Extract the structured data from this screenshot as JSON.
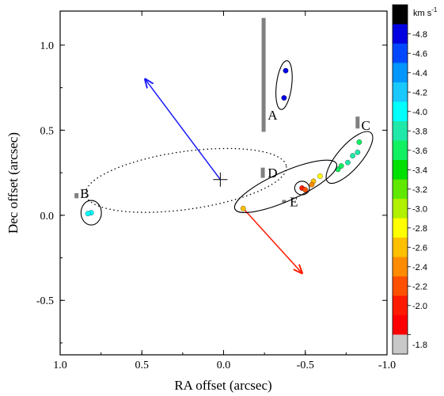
{
  "chart_data": {
    "type": "scatter",
    "xlabel": "RA offset (arcsec)",
    "ylabel": "Dec offset (arcsec)",
    "xlim": [
      1.0,
      -1.0
    ],
    "ylim": [
      -0.82,
      1.2
    ],
    "x_ticks": [
      "1.0",
      "0.5",
      "0.0",
      "-0.5",
      "-1.0"
    ],
    "x_tick_values": [
      1.0,
      0.5,
      0.0,
      -0.5,
      -1.0
    ],
    "y_ticks": [
      "-0.5",
      "0.0",
      "0.5",
      "1.0"
    ],
    "y_tick_values": [
      -0.5,
      0.0,
      0.5,
      1.0
    ],
    "grid": false,
    "colorbar": {
      "unit": "km s",
      "unit_exponent": "-1",
      "labels": [
        "-4.8",
        "-4.6",
        "-4.4",
        "-4.2",
        "-4.0",
        "-3.8",
        "-3.6",
        "-3.4",
        "-3.2",
        "-3.0",
        "-2.8",
        "-2.6",
        "-2.4",
        "-2.2",
        "-2.0",
        "-1.8"
      ],
      "colors": [
        "#000000",
        "#0000e0",
        "#0048ff",
        "#0096ff",
        "#18c8ff",
        "#00ffff",
        "#20e8a8",
        "#10f060",
        "#00e000",
        "#60e800",
        "#b0f000",
        "#ffff00",
        "#ffc000",
        "#ff8c00",
        "#ff5000",
        "#ff1a00",
        "#ff0000",
        "#c8c8c8"
      ]
    },
    "center_marker": {
      "x": 0.02,
      "y": 0.21
    },
    "orbit_ellipse": {
      "cx": 0.23,
      "cy": 0.205,
      "rx": 0.62,
      "ry": 0.17,
      "angle_deg": 8
    },
    "arrows": [
      {
        "name": "blue",
        "color": "#1a1aff",
        "x1": 0.02,
        "y1": 0.21,
        "x2": 0.48,
        "y2": 0.8
      },
      {
        "name": "red",
        "color": "#ff1a00",
        "x1": -0.13,
        "y1": 0.03,
        "x2": -0.48,
        "y2": -0.34
      }
    ],
    "sources": [
      {
        "label": "A",
        "label_x": -0.3,
        "label_y": 0.58,
        "bar": {
          "x": -0.245,
          "y1": 0.49,
          "y2": 1.16
        },
        "ellipse": {
          "cx": -0.37,
          "cy": 0.765,
          "rx": 0.15,
          "ry": 0.045,
          "angle_deg": 83
        },
        "points": [
          {
            "x": -0.38,
            "y": 0.85,
            "velocity": -4.8
          },
          {
            "x": -0.37,
            "y": 0.69,
            "velocity": -4.8
          }
        ]
      },
      {
        "label": "B",
        "label_x": 0.85,
        "label_y": 0.12,
        "bar": {
          "x": 0.9,
          "y1": 0.1,
          "y2": 0.13
        },
        "ellipse": {
          "cx": 0.81,
          "cy": 0.015,
          "rx": 0.075,
          "ry": 0.06,
          "angle_deg": 90
        },
        "points": [
          {
            "x": 0.81,
            "y": 0.015,
            "velocity": -4.0
          },
          {
            "x": 0.83,
            "y": 0.01,
            "velocity": -4.0
          }
        ]
      },
      {
        "label": "C",
        "label_x": -0.87,
        "label_y": 0.52,
        "bar": {
          "x": -0.82,
          "y1": 0.51,
          "y2": 0.58
        },
        "ellipse": {
          "cx": -0.77,
          "cy": 0.34,
          "rx": 0.2,
          "ry": 0.07,
          "angle_deg": 49
        },
        "points": [
          {
            "x": -0.7,
            "y": 0.27,
            "velocity": -3.6
          },
          {
            "x": -0.72,
            "y": 0.29,
            "velocity": -3.6
          },
          {
            "x": -0.76,
            "y": 0.31,
            "velocity": -3.7
          },
          {
            "x": -0.79,
            "y": 0.35,
            "velocity": -3.8
          },
          {
            "x": -0.82,
            "y": 0.37,
            "velocity": -3.7
          },
          {
            "x": -0.83,
            "y": 0.43,
            "velocity": -3.6
          }
        ]
      },
      {
        "label": "D",
        "label_x": -0.3,
        "label_y": 0.24,
        "bar": {
          "x": -0.24,
          "y1": 0.22,
          "y2": 0.28
        },
        "ellipse": {
          "cx": -0.38,
          "cy": 0.17,
          "rx": 0.34,
          "ry": 0.085,
          "angle_deg": 24
        },
        "points": [
          {
            "x": -0.12,
            "y": 0.04,
            "velocity": -2.6
          },
          {
            "x": -0.55,
            "y": 0.2,
            "velocity": -2.5
          },
          {
            "x": -0.59,
            "y": 0.23,
            "velocity": -2.7
          },
          {
            "x": -0.54,
            "y": 0.18,
            "velocity": -2.4
          }
        ]
      },
      {
        "label": "E",
        "label_x": -0.43,
        "label_y": 0.07,
        "bar": {
          "x": -0.37,
          "y1": 0.075,
          "y2": 0.09
        },
        "ellipse": {
          "cx": -0.48,
          "cy": 0.16,
          "rx": 0.045,
          "ry": 0.04,
          "angle_deg": 0
        },
        "points": [
          {
            "x": -0.48,
            "y": 0.16,
            "velocity": -2.0
          },
          {
            "x": -0.5,
            "y": 0.15,
            "velocity": -2.1
          }
        ]
      }
    ]
  }
}
